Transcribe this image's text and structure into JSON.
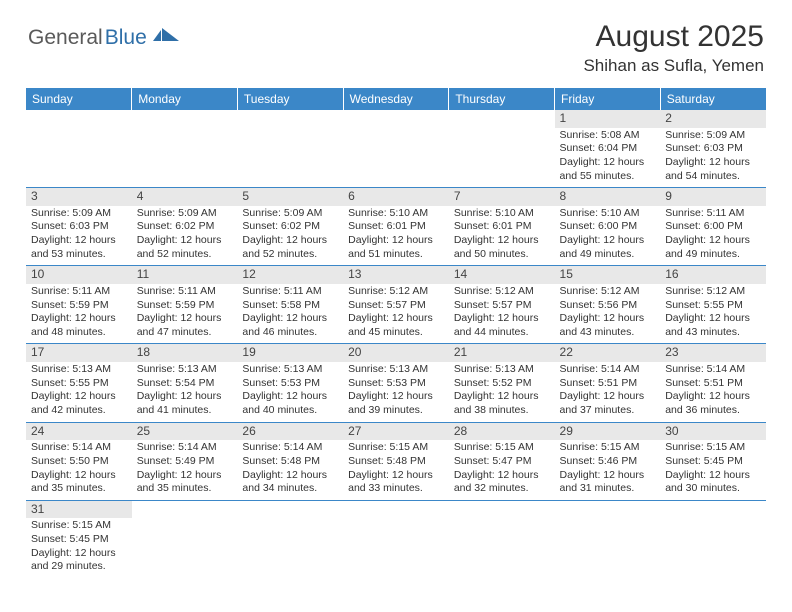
{
  "logo": {
    "part1": "General",
    "part2": "Blue"
  },
  "title": "August 2025",
  "location": "Shihan as Sufla, Yemen",
  "colors": {
    "header_bg": "#3b87c8",
    "header_text": "#ffffff",
    "daynum_bg": "#e8e8e8",
    "border": "#3b87c8",
    "logo_blue": "#2f6fa8",
    "logo_gray": "#5a5a5a"
  },
  "day_headers": [
    "Sunday",
    "Monday",
    "Tuesday",
    "Wednesday",
    "Thursday",
    "Friday",
    "Saturday"
  ],
  "weeks": [
    [
      null,
      null,
      null,
      null,
      null,
      {
        "n": "1",
        "sr": "5:08 AM",
        "ss": "6:04 PM",
        "dl": "12 hours and 55 minutes."
      },
      {
        "n": "2",
        "sr": "5:09 AM",
        "ss": "6:03 PM",
        "dl": "12 hours and 54 minutes."
      }
    ],
    [
      {
        "n": "3",
        "sr": "5:09 AM",
        "ss": "6:03 PM",
        "dl": "12 hours and 53 minutes."
      },
      {
        "n": "4",
        "sr": "5:09 AM",
        "ss": "6:02 PM",
        "dl": "12 hours and 52 minutes."
      },
      {
        "n": "5",
        "sr": "5:09 AM",
        "ss": "6:02 PM",
        "dl": "12 hours and 52 minutes."
      },
      {
        "n": "6",
        "sr": "5:10 AM",
        "ss": "6:01 PM",
        "dl": "12 hours and 51 minutes."
      },
      {
        "n": "7",
        "sr": "5:10 AM",
        "ss": "6:01 PM",
        "dl": "12 hours and 50 minutes."
      },
      {
        "n": "8",
        "sr": "5:10 AM",
        "ss": "6:00 PM",
        "dl": "12 hours and 49 minutes."
      },
      {
        "n": "9",
        "sr": "5:11 AM",
        "ss": "6:00 PM",
        "dl": "12 hours and 49 minutes."
      }
    ],
    [
      {
        "n": "10",
        "sr": "5:11 AM",
        "ss": "5:59 PM",
        "dl": "12 hours and 48 minutes."
      },
      {
        "n": "11",
        "sr": "5:11 AM",
        "ss": "5:59 PM",
        "dl": "12 hours and 47 minutes."
      },
      {
        "n": "12",
        "sr": "5:11 AM",
        "ss": "5:58 PM",
        "dl": "12 hours and 46 minutes."
      },
      {
        "n": "13",
        "sr": "5:12 AM",
        "ss": "5:57 PM",
        "dl": "12 hours and 45 minutes."
      },
      {
        "n": "14",
        "sr": "5:12 AM",
        "ss": "5:57 PM",
        "dl": "12 hours and 44 minutes."
      },
      {
        "n": "15",
        "sr": "5:12 AM",
        "ss": "5:56 PM",
        "dl": "12 hours and 43 minutes."
      },
      {
        "n": "16",
        "sr": "5:12 AM",
        "ss": "5:55 PM",
        "dl": "12 hours and 43 minutes."
      }
    ],
    [
      {
        "n": "17",
        "sr": "5:13 AM",
        "ss": "5:55 PM",
        "dl": "12 hours and 42 minutes."
      },
      {
        "n": "18",
        "sr": "5:13 AM",
        "ss": "5:54 PM",
        "dl": "12 hours and 41 minutes."
      },
      {
        "n": "19",
        "sr": "5:13 AM",
        "ss": "5:53 PM",
        "dl": "12 hours and 40 minutes."
      },
      {
        "n": "20",
        "sr": "5:13 AM",
        "ss": "5:53 PM",
        "dl": "12 hours and 39 minutes."
      },
      {
        "n": "21",
        "sr": "5:13 AM",
        "ss": "5:52 PM",
        "dl": "12 hours and 38 minutes."
      },
      {
        "n": "22",
        "sr": "5:14 AM",
        "ss": "5:51 PM",
        "dl": "12 hours and 37 minutes."
      },
      {
        "n": "23",
        "sr": "5:14 AM",
        "ss": "5:51 PM",
        "dl": "12 hours and 36 minutes."
      }
    ],
    [
      {
        "n": "24",
        "sr": "5:14 AM",
        "ss": "5:50 PM",
        "dl": "12 hours and 35 minutes."
      },
      {
        "n": "25",
        "sr": "5:14 AM",
        "ss": "5:49 PM",
        "dl": "12 hours and 35 minutes."
      },
      {
        "n": "26",
        "sr": "5:14 AM",
        "ss": "5:48 PM",
        "dl": "12 hours and 34 minutes."
      },
      {
        "n": "27",
        "sr": "5:15 AM",
        "ss": "5:48 PM",
        "dl": "12 hours and 33 minutes."
      },
      {
        "n": "28",
        "sr": "5:15 AM",
        "ss": "5:47 PM",
        "dl": "12 hours and 32 minutes."
      },
      {
        "n": "29",
        "sr": "5:15 AM",
        "ss": "5:46 PM",
        "dl": "12 hours and 31 minutes."
      },
      {
        "n": "30",
        "sr": "5:15 AM",
        "ss": "5:45 PM",
        "dl": "12 hours and 30 minutes."
      }
    ],
    [
      {
        "n": "31",
        "sr": "5:15 AM",
        "ss": "5:45 PM",
        "dl": "12 hours and 29 minutes."
      },
      null,
      null,
      null,
      null,
      null,
      null
    ]
  ],
  "labels": {
    "sunrise": "Sunrise:",
    "sunset": "Sunset:",
    "daylight": "Daylight:"
  }
}
